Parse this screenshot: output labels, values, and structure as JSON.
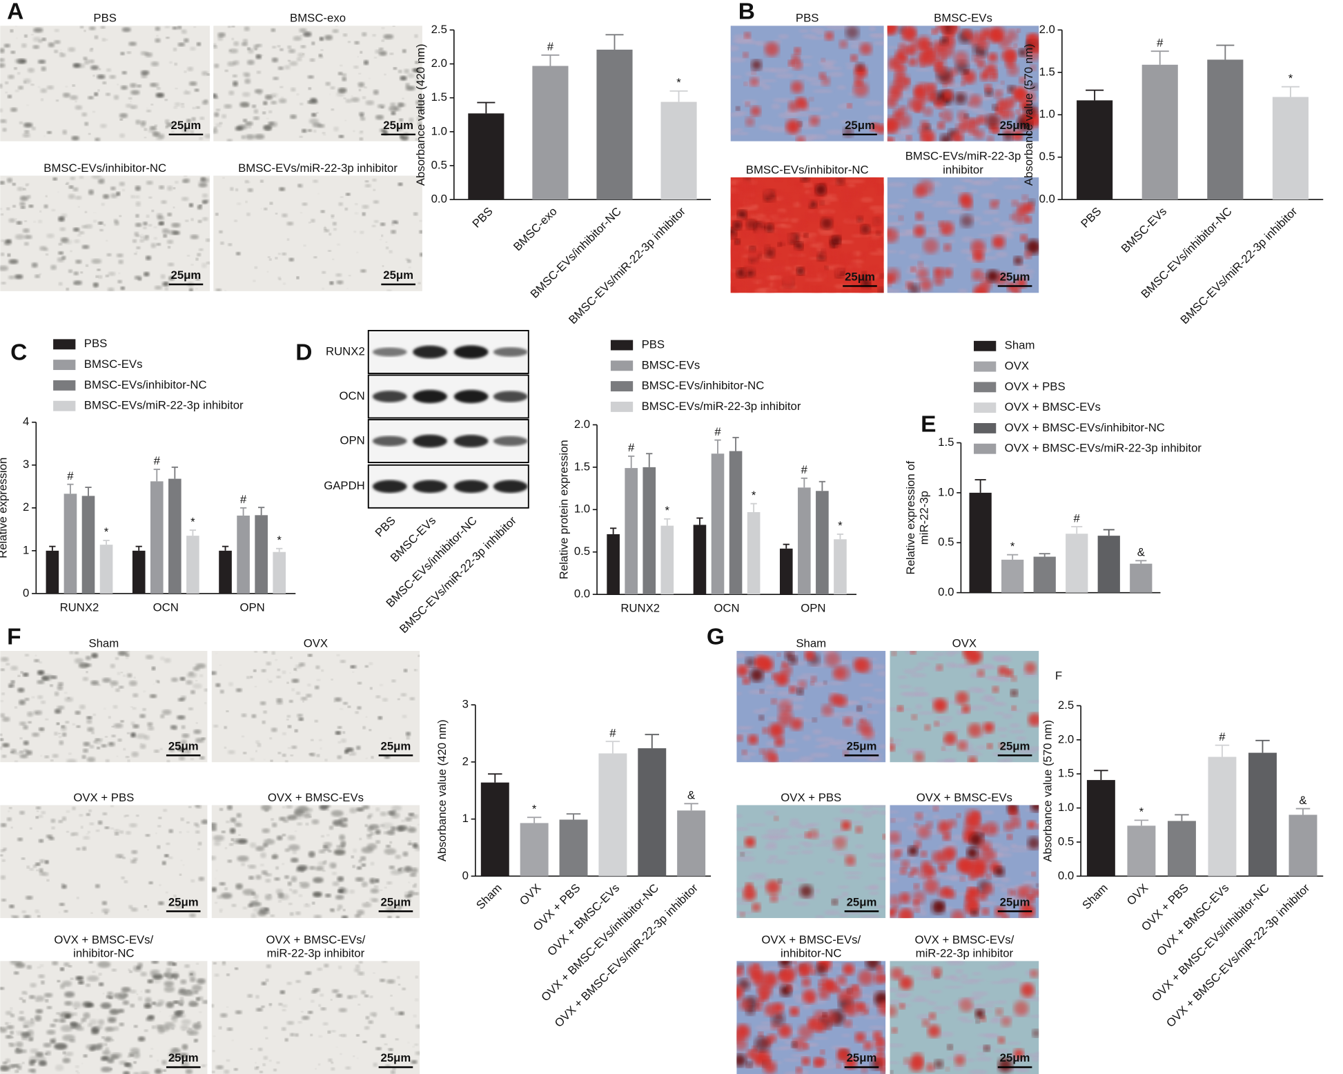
{
  "figure": {
    "scale_bar": "25μm",
    "panels": [
      {
        "letter": "A",
        "images": [
          [
            "PBS"
          ],
          [
            "BMSC-exo"
          ],
          [
            "BMSC-EVs/inhibitor-NC"
          ],
          [
            "BMSC-EVs/miR-22-3p inhibitor"
          ]
        ]
      },
      {
        "letter": "B",
        "images": [
          [
            "PBS"
          ],
          [
            "BMSC-EVs"
          ],
          [
            "BMSC-EVs/inhibitor-NC"
          ],
          [
            "BMSC-EVs/miR-22-3p",
            "inhibitor"
          ]
        ]
      },
      {
        "letter": "C"
      },
      {
        "letter": "D",
        "blot": {
          "rows": [
            "RUNX2",
            "OCN",
            "OPN",
            "GAPDH"
          ],
          "lanes": [
            "PBS",
            "BMSC-EVs",
            "BMSC-EVs/inhibitor-NC",
            "BMSC-EVs/miR-22-3p inhibitor"
          ]
        }
      },
      {
        "letter": "E"
      },
      {
        "letter": "F",
        "images": [
          [
            "Sham"
          ],
          [
            "OVX"
          ],
          [
            "OVX + PBS"
          ],
          [
            "OVX + BMSC-EVs"
          ],
          [
            "OVX + BMSC-EVs/",
            "inhibitor-NC"
          ],
          [
            "OVX + BMSC-EVs/",
            "miR-22-3p inhibitor"
          ]
        ]
      },
      {
        "letter": "G",
        "images": [
          [
            "Sham"
          ],
          [
            "OVX"
          ],
          [
            "OVX + PBS"
          ],
          [
            "OVX + BMSC-EVs"
          ],
          [
            "OVX + BMSC-EVs/",
            "inhibitor-NC"
          ],
          [
            "OVX + BMSC-EVs/",
            "miR-22-3p inhibitor"
          ]
        ]
      }
    ]
  },
  "chart_data": [
    {
      "type": "bar",
      "ylabel": "Absorbance value (420 nm)",
      "categories": [
        "PBS",
        "BMSC-exo",
        "BMSC-EVs/inhibitor-NC",
        "BMSC-EVs/miR-22-3p inhibitor"
      ],
      "values": [
        1.27,
        1.97,
        2.21,
        1.44
      ],
      "errors": [
        0.16,
        0.16,
        0.22,
        0.16
      ],
      "annotations": [
        null,
        "#",
        null,
        "*"
      ],
      "colors": [
        "#231f20",
        "#9b9ca0",
        "#7a7b7e",
        "#cfd0d2"
      ],
      "ylim": [
        0,
        2.5
      ],
      "yticks": [
        {
          "value": 0,
          "label": "0.0"
        },
        0.5,
        {
          "value": 1,
          "label": "1.0"
        },
        1.5,
        {
          "value": 2,
          "label": "2.0"
        },
        2.5
      ],
      "grid": false
    },
    {
      "type": "bar",
      "ylabel": "Absorbance value (570 nm)",
      "categories": [
        "PBS",
        "BMSC-EVs",
        "BMSC-EVs/inhibitor-NC",
        "BMSC-EVs/miR-22-3p inhibitor"
      ],
      "values": [
        1.17,
        1.59,
        1.65,
        1.21
      ],
      "errors": [
        0.12,
        0.16,
        0.17,
        0.12
      ],
      "annotations": [
        null,
        "#",
        null,
        "*"
      ],
      "colors": [
        "#231f20",
        "#9b9ca0",
        "#7a7b7e",
        "#cfd0d2"
      ],
      "ylim": [
        0,
        2
      ],
      "yticks": [
        {
          "value": 0,
          "label": "0.0"
        },
        0.5,
        {
          "value": 1,
          "label": "1.0"
        },
        1.5,
        {
          "value": 2,
          "label": "2.0"
        }
      ],
      "grid": false
    },
    {
      "type": "grouped-bar",
      "ylabel": "Relative expression",
      "legend": "top-left",
      "categories": [
        "RUNX2",
        "OCN",
        "OPN"
      ],
      "series": [
        {
          "name": "PBS",
          "color": "#231f20",
          "values": [
            1.0,
            1.0,
            1.0
          ],
          "errors": [
            0.1,
            0.1,
            0.1
          ],
          "annotations": [
            null,
            null,
            null
          ]
        },
        {
          "name": "BMSC-EVs",
          "color": "#9b9ca0",
          "values": [
            2.33,
            2.62,
            1.82
          ],
          "errors": [
            0.22,
            0.28,
            0.18
          ],
          "annotations": [
            "#",
            "#",
            "#"
          ]
        },
        {
          "name": "BMSC-EVs/inhibitor-NC",
          "color": "#7a7b7e",
          "values": [
            2.28,
            2.68,
            1.83
          ],
          "errors": [
            0.2,
            0.27,
            0.18
          ],
          "annotations": [
            null,
            null,
            null
          ]
        },
        {
          "name": "BMSC-EVs/miR-22-3p inhibitor",
          "color": "#cfd0d2",
          "values": [
            1.14,
            1.35,
            0.97
          ],
          "errors": [
            0.1,
            0.13,
            0.08
          ],
          "annotations": [
            "*",
            "*",
            "*"
          ]
        }
      ],
      "ylim": [
        0,
        4
      ],
      "yticks": [
        0,
        1,
        2,
        3,
        4
      ],
      "grid": false
    },
    {
      "type": "grouped-bar",
      "ylabel": "Relative protein expression",
      "legend": "top-left",
      "categories": [
        "RUNX2",
        "OCN",
        "OPN"
      ],
      "series": [
        {
          "name": "PBS",
          "color": "#231f20",
          "values": [
            0.71,
            0.82,
            0.54
          ],
          "errors": [
            0.07,
            0.08,
            0.05
          ],
          "annotations": [
            null,
            null,
            null
          ]
        },
        {
          "name": "BMSC-EVs",
          "color": "#9b9ca0",
          "values": [
            1.49,
            1.66,
            1.26
          ],
          "errors": [
            0.14,
            0.16,
            0.11
          ],
          "annotations": [
            "#",
            "#",
            "#"
          ]
        },
        {
          "name": "BMSC-EVs/inhibitor-NC",
          "color": "#7a7b7e",
          "values": [
            1.5,
            1.69,
            1.22
          ],
          "errors": [
            0.16,
            0.16,
            0.11
          ],
          "annotations": [
            null,
            null,
            null
          ]
        },
        {
          "name": "BMSC-EVs/miR-22-3p inhibitor",
          "color": "#cfd0d2",
          "values": [
            0.81,
            0.97,
            0.65
          ],
          "errors": [
            0.08,
            0.1,
            0.06
          ],
          "annotations": [
            "*",
            "*",
            "*"
          ]
        }
      ],
      "ylim": [
        0,
        2
      ],
      "yticks": [
        {
          "value": 0,
          "label": "0.0"
        },
        0.5,
        {
          "value": 1,
          "label": "1.0"
        },
        1.5,
        {
          "value": 2,
          "label": "2.0"
        }
      ],
      "grid": false
    },
    {
      "type": "grouped-bar",
      "ylabel": [
        "Relative expression of",
        "miR-22-3p"
      ],
      "legend": "top-left",
      "series": [
        {
          "name": "Sham",
          "color": "#231f20",
          "values": [
            1.0
          ],
          "errors": [
            0.13
          ],
          "annotations": [
            null
          ]
        },
        {
          "name": "OVX",
          "color": "#a5a6aa",
          "values": [
            0.33
          ],
          "errors": [
            0.05
          ],
          "annotations": [
            "*"
          ]
        },
        {
          "name": "OVX + PBS",
          "color": "#7d7e81",
          "values": [
            0.36
          ],
          "errors": [
            0.03
          ],
          "annotations": [
            null
          ]
        },
        {
          "name": "OVX + BMSC-EVs",
          "color": "#d2d3d5",
          "values": [
            0.59
          ],
          "errors": [
            0.07
          ],
          "annotations": [
            "#"
          ]
        },
        {
          "name": "OVX + BMSC-EVs/inhibitor-NC",
          "color": "#5f6063",
          "values": [
            0.57
          ],
          "errors": [
            0.06
          ],
          "annotations": [
            null
          ]
        },
        {
          "name": "OVX + BMSC-EVs/miR-22-3p inhibitor",
          "color": "#9d9ea2",
          "values": [
            0.29
          ],
          "errors": [
            0.03
          ],
          "annotations": [
            "&"
          ]
        }
      ],
      "ylim": [
        0,
        1.5
      ],
      "yticks": [
        {
          "value": 0,
          "label": "0.0"
        },
        0.5,
        {
          "value": 1,
          "label": "1.0"
        },
        1.5
      ],
      "grid": false
    },
    {
      "type": "bar",
      "ylabel": "Absorbance value (420 nm)",
      "categories": [
        "Sham",
        "OVX",
        "OVX + PBS",
        "OVX + BMSC-EVs",
        "OVX + BMSC-EVs/inhibitor-NC",
        "OVX + BMSC-EVs/miR-22-3p inhibitor"
      ],
      "values": [
        1.64,
        0.93,
        0.99,
        2.15,
        2.24,
        1.15
      ],
      "errors": [
        0.15,
        0.1,
        0.1,
        0.21,
        0.24,
        0.12
      ],
      "annotations": [
        null,
        "*",
        null,
        "#",
        null,
        "&"
      ],
      "colors": [
        "#231f20",
        "#a5a6aa",
        "#7d7e81",
        "#d2d3d5",
        "#5f6063",
        "#9d9ea2"
      ],
      "ylim": [
        0,
        3
      ],
      "yticks": [
        0,
        1,
        2,
        3
      ],
      "grid": false
    },
    {
      "type": "bar",
      "title": "F",
      "ylabel": "Absorbance value (570 nm)",
      "categories": [
        "Sham",
        "OVX",
        "OVX + PBS",
        "OVX + BMSC-EVs",
        "OVX + BMSC-EVs/inhibitor-NC",
        "OVX + BMSC-EVs/miR-22-3p inhibitor"
      ],
      "values": [
        1.41,
        0.74,
        0.81,
        1.75,
        1.81,
        0.9
      ],
      "errors": [
        0.14,
        0.08,
        0.09,
        0.17,
        0.18,
        0.09
      ],
      "annotations": [
        null,
        "*",
        null,
        "#",
        null,
        "&"
      ],
      "colors": [
        "#231f20",
        "#a5a6aa",
        "#7d7e81",
        "#d2d3d5",
        "#5f6063",
        "#9d9ea2"
      ],
      "ylim": [
        0,
        2.5
      ],
      "yticks": [
        {
          "value": 0,
          "label": "0.0"
        },
        0.5,
        {
          "value": 1,
          "label": "1.0"
        },
        1.5,
        {
          "value": 2,
          "label": "2.0"
        },
        2.5
      ],
      "grid": false
    }
  ]
}
